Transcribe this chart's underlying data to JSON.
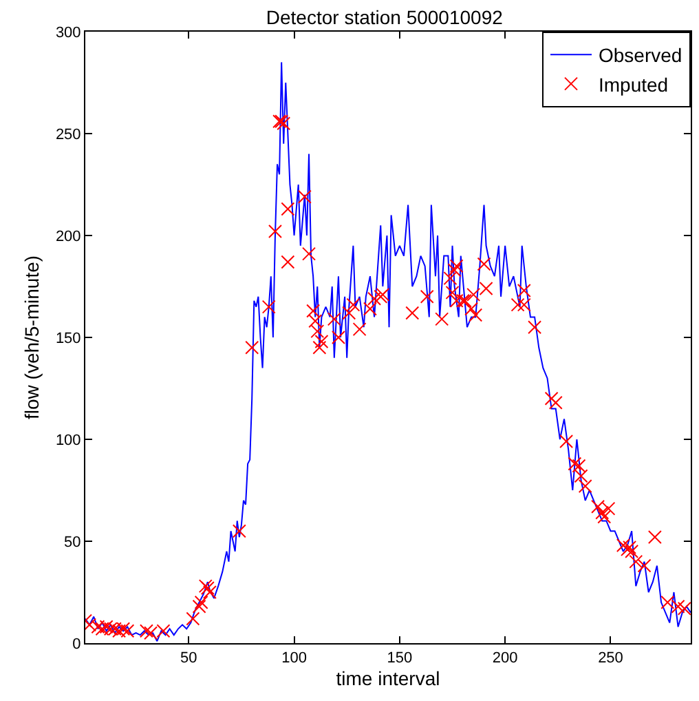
{
  "chart_data": {
    "type": "line",
    "title": "Detector station 500010092",
    "xlabel": "time interval",
    "ylabel": "flow (veh/5-minute)",
    "xlim": [
      1,
      288
    ],
    "xticks": [
      50,
      100,
      150,
      200,
      250
    ],
    "ylim": [
      0,
      300
    ],
    "yticks": [
      0,
      50,
      100,
      150,
      200,
      250,
      300
    ],
    "grid": false,
    "legend": "top right",
    "series": [
      {
        "name": "Observed",
        "color": "#0000ff",
        "marker": "none",
        "line_style": "solid",
        "x": [
          1,
          3,
          5,
          7,
          9,
          11,
          13,
          15,
          17,
          19,
          21,
          23,
          25,
          27,
          29,
          31,
          33,
          35,
          37,
          39,
          41,
          43,
          45,
          47,
          49,
          51,
          53,
          55,
          57,
          59,
          60,
          62,
          64,
          66,
          68,
          69,
          70,
          71,
          72,
          73,
          74,
          75,
          76,
          77,
          78,
          79,
          80,
          81,
          82,
          83,
          84,
          85,
          86,
          87,
          88,
          89,
          90,
          91,
          92,
          93,
          94,
          95,
          96,
          97,
          98,
          99,
          100,
          102,
          103,
          105,
          106,
          107,
          108,
          109,
          110,
          111,
          112,
          113,
          115,
          117,
          118,
          119,
          121,
          122,
          124,
          125,
          126,
          128,
          129,
          131,
          133,
          134,
          136,
          138,
          141,
          142,
          144,
          145,
          146,
          148,
          150,
          152,
          154,
          156,
          158,
          160,
          162,
          164,
          165,
          167,
          168,
          169,
          171,
          173,
          174,
          175,
          176,
          178,
          179,
          182,
          184,
          186,
          188,
          190,
          191,
          193,
          195,
          197,
          198,
          200,
          202,
          204,
          207,
          208,
          210,
          212,
          214,
          216,
          218,
          220,
          222,
          224,
          226,
          228,
          230,
          232,
          234,
          236,
          238,
          240,
          242,
          244,
          246,
          248,
          250,
          252,
          254,
          256,
          258,
          260,
          262,
          264,
          266,
          268,
          270,
          272,
          274,
          276,
          278,
          280,
          282,
          284,
          286,
          288
        ],
        "values": [
          12,
          9,
          13,
          7,
          10,
          6,
          9,
          5,
          8,
          6,
          8,
          4,
          5,
          4,
          6,
          4,
          5,
          1,
          6,
          4,
          7,
          4,
          7,
          9,
          7,
          10,
          16,
          20,
          24,
          30,
          26,
          22,
          28,
          35,
          45,
          40,
          55,
          50,
          45,
          60,
          52,
          58,
          70,
          68,
          88,
          90,
          120,
          168,
          165,
          170,
          150,
          135,
          160,
          155,
          165,
          180,
          150,
          200,
          235,
          230,
          285,
          245,
          275,
          250,
          225,
          215,
          200,
          225,
          195,
          220,
          200,
          240,
          190,
          180,
          160,
          175,
          145,
          160,
          165,
          160,
          175,
          140,
          180,
          150,
          170,
          140,
          165,
          195,
          165,
          170,
          155,
          170,
          180,
          160,
          205,
          175,
          200,
          155,
          210,
          190,
          195,
          190,
          215,
          175,
          180,
          190,
          185,
          160,
          215,
          180,
          200,
          160,
          190,
          190,
          165,
          195,
          175,
          160,
          190,
          155,
          160,
          160,
          185,
          215,
          195,
          185,
          180,
          195,
          170,
          195,
          175,
          180,
          165,
          195,
          175,
          160,
          160,
          145,
          135,
          130,
          115,
          115,
          100,
          110,
          95,
          75,
          100,
          80,
          70,
          75,
          70,
          65,
          60,
          60,
          55,
          55,
          50,
          45,
          48,
          55,
          28,
          35,
          40,
          25,
          30,
          38,
          20,
          15,
          10,
          25,
          8,
          15,
          18,
          15
        ]
      },
      {
        "name": "Imputed",
        "type": "scatter",
        "color": "#ff0000",
        "marker": "cross",
        "x": [
          1,
          3,
          7,
          9,
          11,
          13,
          15,
          17,
          19,
          21,
          30,
          32,
          38,
          52,
          55,
          56,
          58,
          59,
          60,
          74,
          80,
          88,
          91,
          93,
          94,
          95,
          97,
          97,
          105,
          107,
          109,
          110,
          111,
          112,
          113,
          119,
          121,
          126,
          128,
          131,
          136,
          138,
          141,
          142,
          156,
          163,
          170,
          174,
          175,
          176,
          177,
          177,
          180,
          181,
          184,
          185,
          186,
          190,
          191,
          206,
          209,
          209,
          214,
          222,
          224,
          229,
          233,
          235,
          236,
          238,
          244,
          246,
          247,
          249,
          256,
          258,
          259,
          260,
          262,
          266,
          271,
          277,
          282,
          285
        ],
        "values": [
          11,
          9,
          8,
          7,
          8,
          7,
          7,
          6,
          7,
          6,
          6,
          5,
          6,
          12,
          18,
          20,
          28,
          27,
          25,
          55,
          145,
          165,
          202,
          256,
          256,
          255,
          213,
          187,
          219,
          191,
          163,
          158,
          153,
          145,
          148,
          159,
          150,
          162,
          166,
          154,
          164,
          169,
          170,
          171,
          162,
          170,
          159,
          179,
          172,
          183,
          185,
          168,
          168,
          168,
          164,
          171,
          161,
          186,
          174,
          166,
          166,
          173,
          155,
          120,
          118,
          99,
          88,
          87,
          82,
          77,
          67,
          64,
          62,
          66,
          48,
          46,
          47,
          45,
          40,
          38,
          52,
          20,
          18,
          17
        ]
      }
    ]
  }
}
